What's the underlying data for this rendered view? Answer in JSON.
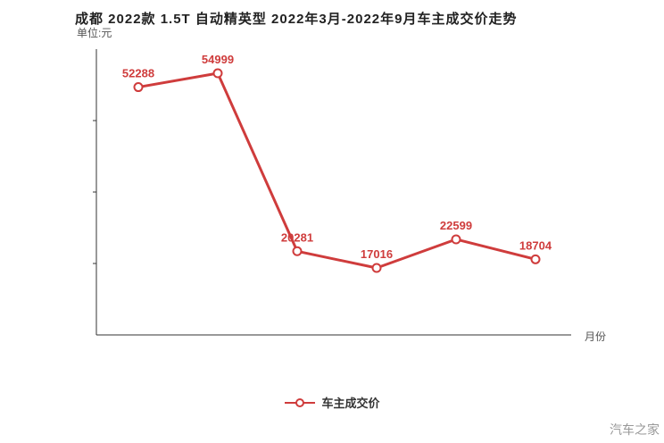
{
  "title": "成都 2022款 1.5T 自动精英型 2022年3月-2022年9月车主成交价走势",
  "y_unit_label": "单位:元",
  "x_axis_label": "月份",
  "legend": {
    "label": "车主成交价"
  },
  "watermark": "汽车之家",
  "colors": {
    "line": "#cf3c3c",
    "point_fill": "#ffffff",
    "value_label": "#cf3c3c",
    "axis": "#333333",
    "muted_text": "#555555",
    "watermark": "#999999"
  },
  "chart_data": {
    "type": "line",
    "title": "成都 2022款 1.5T 自动精英型 2022年3月-2022年9月车主成交价走势",
    "xlabel": "月份",
    "ylabel": "单位:元",
    "categories": [
      "",
      "",
      "",
      "",
      "",
      ""
    ],
    "series": [
      {
        "name": "车主成交价",
        "values": [
          52288,
          54999,
          20281,
          17016,
          22599,
          18704
        ]
      }
    ],
    "ylim": [
      10000,
      60000
    ],
    "grid": false,
    "legend_position": "bottom"
  }
}
